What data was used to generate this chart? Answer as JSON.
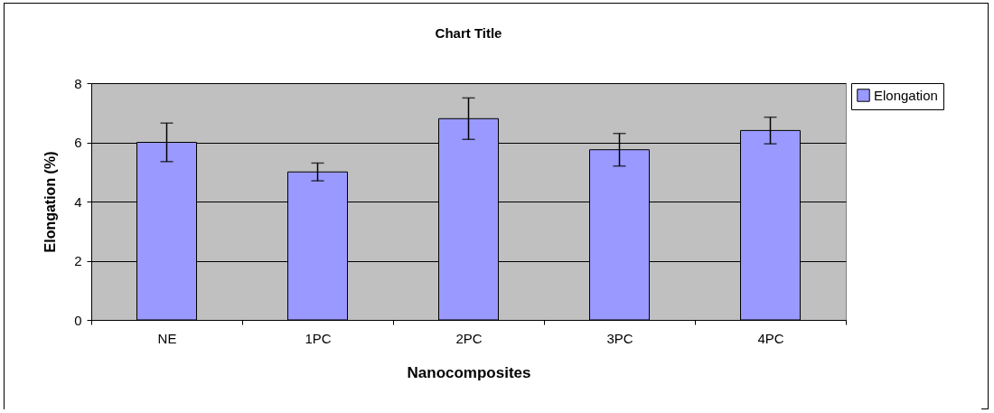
{
  "chart_data": {
    "type": "bar",
    "title": "Chart Title",
    "xlabel": "Nanocomposites",
    "ylabel": "Elongation (%)",
    "categories": [
      "NE",
      "1PC",
      "2PC",
      "3PC",
      "4PC"
    ],
    "series": [
      {
        "name": "Elongation",
        "color": "#9999ff",
        "values": [
          6.0,
          5.0,
          6.8,
          5.75,
          6.4
        ],
        "errors": [
          0.65,
          0.3,
          0.7,
          0.55,
          0.45
        ]
      }
    ],
    "ylim": [
      0,
      8
    ],
    "yticks": [
      0,
      2,
      4,
      6,
      8
    ],
    "grid": "y",
    "legend": "right"
  }
}
